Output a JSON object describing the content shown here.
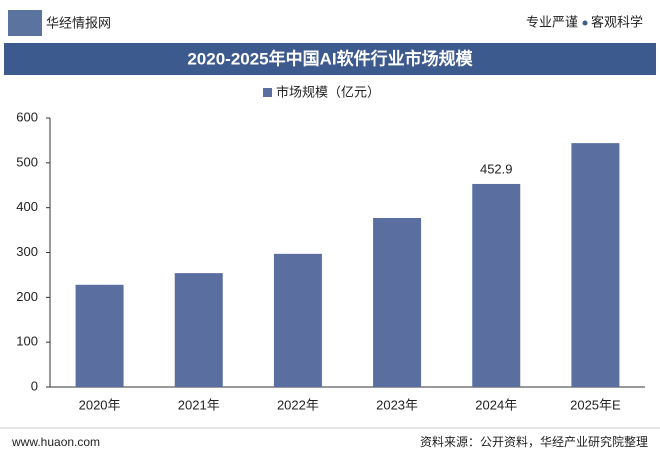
{
  "header": {
    "logo": "华经情报网",
    "slogan_left": "专业严谨",
    "slogan_right": "客观科学"
  },
  "chart_data": {
    "type": "bar",
    "title": "2020-2025年中国AI软件行业市场规模",
    "categories": [
      "2020年",
      "2021年",
      "2022年",
      "2023年",
      "2024年",
      "2025年E"
    ],
    "series": [
      {
        "name": "市场规模（亿元）",
        "color": "#5a6fa0",
        "values": [
          228,
          254,
          297,
          377,
          452.9,
          544
        ],
        "value_labels": [
          null,
          null,
          null,
          null,
          "452.9",
          null
        ]
      }
    ],
    "ylim": [
      0,
      600
    ],
    "yticks": [
      0,
      100,
      200,
      300,
      400,
      500,
      600
    ],
    "grid": false
  },
  "footer": {
    "website": "www.huaon.com",
    "source": "资料来源：公开资料，华经产业研究院整理"
  }
}
